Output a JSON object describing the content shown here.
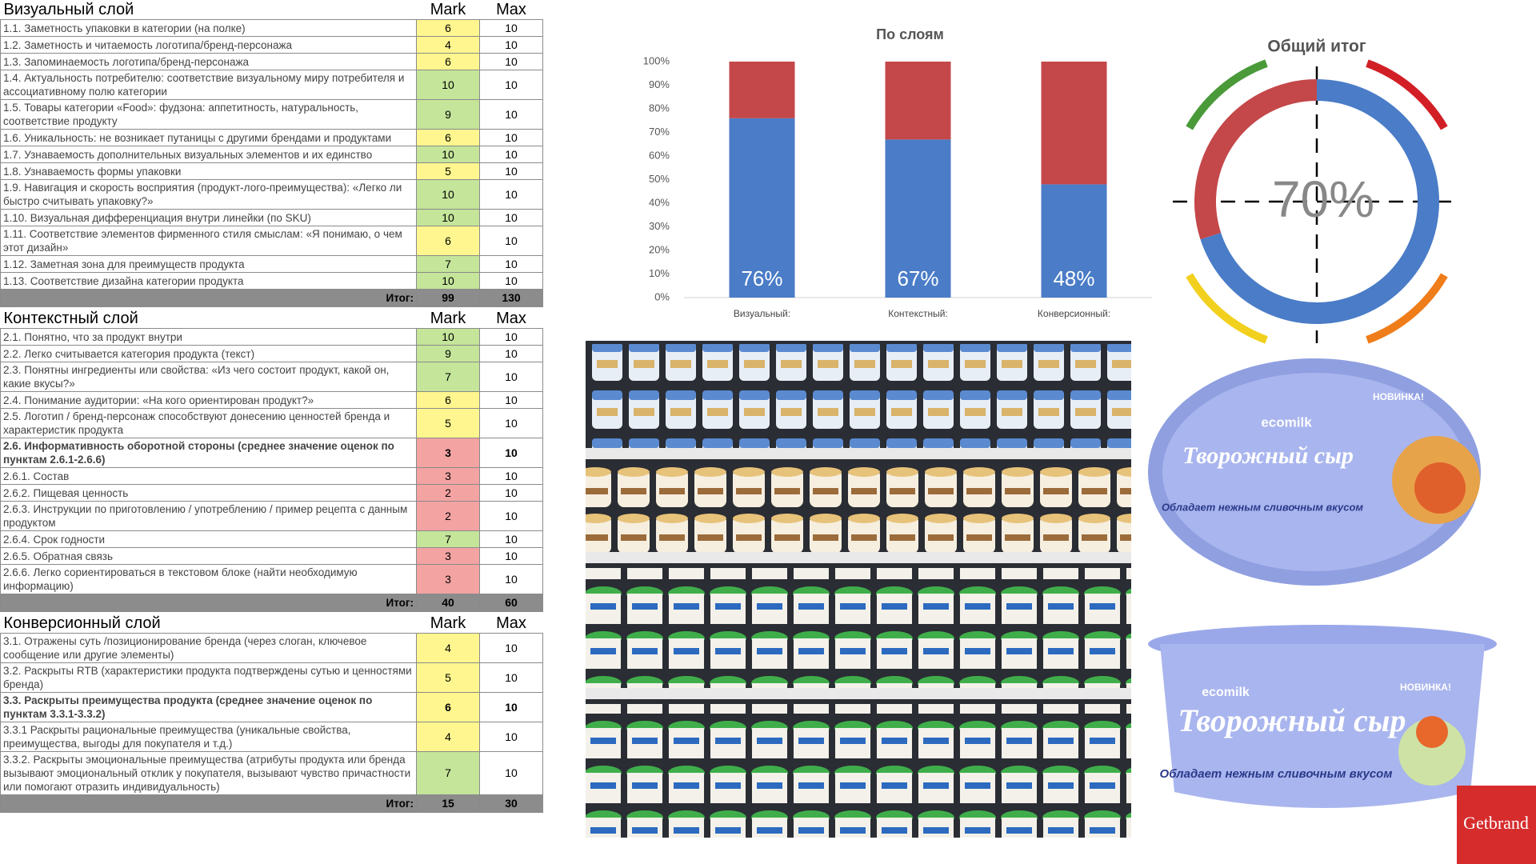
{
  "tables": [
    {
      "title": "Визуальный слой",
      "columns": [
        "Mark",
        "Max"
      ],
      "total_label": "Итог:",
      "total": [
        99,
        130
      ],
      "rows": [
        {
          "label": "1.1. Заметность упаковки в категории (на полке)",
          "mark": 6,
          "max": 10,
          "color": "#fff68f"
        },
        {
          "label": "1.2. Заметность и читаемость логотипа/бренд-персонажа",
          "mark": 4,
          "max": 10,
          "color": "#fff68f"
        },
        {
          "label": "1.3. Запоминаемость логотипа/бренд-персонажа",
          "mark": 6,
          "max": 10,
          "color": "#fff68f"
        },
        {
          "label": "1.4. Актуальность потребителю: соответствие визуальному миру потребителя и ассоциативному полю категории",
          "mark": 10,
          "max": 10,
          "color": "#c4e59a"
        },
        {
          "label": "1.5. Товары категории «Food»: фудзона: аппетитность, натуральность, соответствие продукту",
          "mark": 9,
          "max": 10,
          "color": "#c4e59a"
        },
        {
          "label": "1.6. Уникальность: не возникает путаницы с другими брендами и продуктами",
          "mark": 6,
          "max": 10,
          "color": "#fff68f"
        },
        {
          "label": "1.7. Узнаваемость дополнительных визуальных элементов и их единство",
          "mark": 10,
          "max": 10,
          "color": "#c4e59a"
        },
        {
          "label": "1.8. Узнаваемость формы упаковки",
          "mark": 5,
          "max": 10,
          "color": "#fff68f"
        },
        {
          "label": "1.9. Навигация и скорость восприятия (продукт-лого-преимущества): «Легко ли быстро считывать упаковку?»",
          "mark": 10,
          "max": 10,
          "color": "#c4e59a"
        },
        {
          "label": "1.10. Визуальная дифференциация внутри линейки (по SKU)",
          "mark": 10,
          "max": 10,
          "color": "#c4e59a"
        },
        {
          "label": "1.11. Соответствие элементов фирменного стиля смыслам: «Я понимаю, о чем этот дизайн»",
          "mark": 6,
          "max": 10,
          "color": "#fff68f"
        },
        {
          "label": "1.12. Заметная зона для преимуществ продукта",
          "mark": 7,
          "max": 10,
          "color": "#c4e59a"
        },
        {
          "label": "1.13. Соответствие дизайна категории продукта",
          "mark": 10,
          "max": 10,
          "color": "#c4e59a"
        }
      ]
    },
    {
      "title": "Контекстный слой",
      "columns": [
        "Mark",
        "Max"
      ],
      "total_label": "Итог:",
      "total": [
        40,
        60
      ],
      "rows": [
        {
          "label": "2.1. Понятно, что за продукт внутри",
          "mark": 10,
          "max": 10,
          "color": "#c4e59a"
        },
        {
          "label": "2.2. Легко считывается категория продукта (текст)",
          "mark": 9,
          "max": 10,
          "color": "#c4e59a"
        },
        {
          "label": "2.3. Понятны ингредиенты или свойства: «Из чего состоит продукт, какой он, какие вкусы?»",
          "mark": 7,
          "max": 10,
          "color": "#c4e59a"
        },
        {
          "label": "2.4. Понимание аудитории: «На кого ориентирован продукт?»",
          "mark": 6,
          "max": 10,
          "color": "#fff68f"
        },
        {
          "label": "2.5. Логотип / бренд-персонаж способствуют донесению ценностей бренда и характеристик продукта",
          "mark": 5,
          "max": 10,
          "color": "#fff68f"
        },
        {
          "label": "2.6. Информативность оборотной стороны (среднее значение оценок по пунктам 2.6.1-2.6.6)",
          "mark": 3,
          "max": 10,
          "color": "#f4a3a3",
          "bold": true
        },
        {
          "label": "2.6.1. Состав",
          "mark": 3,
          "max": 10,
          "color": "#f4a3a3"
        },
        {
          "label": "2.6.2. Пищевая ценность",
          "mark": 2,
          "max": 10,
          "color": "#f4a3a3"
        },
        {
          "label": "2.6.3. Инструкции по приготовлению / употреблению / пример рецепта с данным продуктом",
          "mark": 2,
          "max": 10,
          "color": "#f4a3a3"
        },
        {
          "label": "2.6.4. Срок годности",
          "mark": 7,
          "max": 10,
          "color": "#c4e59a"
        },
        {
          "label": "2.6.5. Обратная связь",
          "mark": 3,
          "max": 10,
          "color": "#f4a3a3"
        },
        {
          "label": "2.6.6. Легко сориентироваться в текстовом блоке (найти необходимую информацию)",
          "mark": 3,
          "max": 10,
          "color": "#f4a3a3"
        }
      ]
    },
    {
      "title": "Конверсионный слой",
      "columns": [
        "Mark",
        "Max"
      ],
      "total_label": "Итог:",
      "total": [
        15,
        30
      ],
      "rows": [
        {
          "label": "3.1. Отражены суть /позиционирование бренда (через слоган, ключевое сообщение или другие элементы)",
          "mark": 4,
          "max": 10,
          "color": "#fff68f"
        },
        {
          "label": "3.2. Раскрыты RTB (характеристики продукта подтверждены сутью и ценностями бренда)",
          "mark": 5,
          "max": 10,
          "color": "#fff68f"
        },
        {
          "label": "3.3. Раскрыты преимущества продукта (среднее значение оценок по пунктам 3.3.1-3.3.2)",
          "mark": 6,
          "max": 10,
          "color": "#fff68f",
          "bold": true
        },
        {
          "label": "3.3.1 Раскрыты рациональные преимущества (уникальные свойства, преимущества, выгоды для покупателя и т.д.)",
          "mark": 4,
          "max": 10,
          "color": "#fff68f"
        },
        {
          "label": "3.3.2. Раскрыты эмоциональные преимущества (атрибуты продукта или бренда вызывают эмоциональный отклик у покупателя, вызывают чувство причастности или помогают отразить индивидуальность)",
          "mark": 7,
          "max": 10,
          "color": "#c4e59a"
        }
      ]
    }
  ],
  "chart_data": [
    {
      "type": "bar",
      "title": "По слоям",
      "stacked": true,
      "grid": false,
      "categories": [
        "Визуальный:",
        "Контекстный:",
        "Конверсионный:"
      ],
      "series": [
        {
          "color": "#4a7cc7",
          "values": [
            76,
            67,
            48
          ],
          "value_labels": [
            "76%",
            "67%",
            "48%"
          ]
        },
        {
          "color": "#c4474a",
          "values": [
            24,
            33,
            52
          ]
        }
      ],
      "ylim": [
        0,
        100
      ],
      "yticks": [
        {
          "value": 0,
          "label": "0%"
        },
        {
          "value": 10,
          "label": "10%"
        },
        {
          "value": 20,
          "label": "20%"
        },
        {
          "value": 30,
          "label": "30%"
        },
        {
          "value": 40,
          "label": "40%"
        },
        {
          "value": 50,
          "label": "50%"
        },
        {
          "value": 60,
          "label": "60%"
        },
        {
          "value": 70,
          "label": "70%"
        },
        {
          "value": 80,
          "label": "80%"
        },
        {
          "value": 90,
          "label": "90%"
        },
        {
          "value": 100,
          "label": "100%"
        }
      ]
    },
    {
      "type": "donut",
      "title": "Общий итог",
      "values": [
        70,
        30
      ],
      "colors": [
        "#4a7cc7",
        "#c4474a"
      ],
      "center_label": "70%"
    }
  ],
  "products": {
    "badge": "НОВИНКА!",
    "brand": "ecomilk",
    "name": "Творожный сыр",
    "claim": "Обладает нежным сливочным вкусом"
  },
  "logo": "Getbrand"
}
